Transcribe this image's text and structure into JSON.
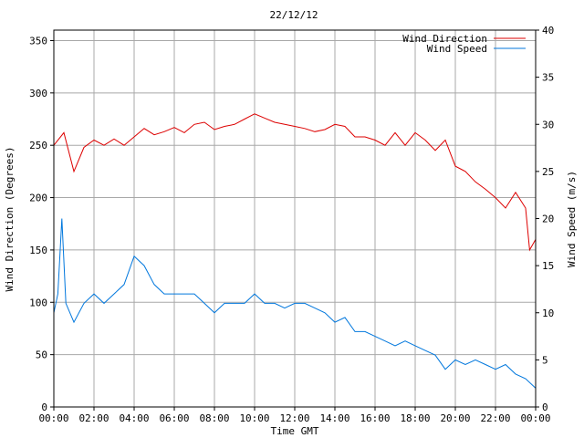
{
  "chart_data": {
    "type": "line",
    "title": "22/12/12",
    "xlabel": "Time GMT",
    "ylabel_left": "Wind Direction (Degrees)",
    "ylabel_right": "Wind Speed (m/s)",
    "x_range": [
      "00:00",
      "24:00"
    ],
    "x_tick_labels": [
      "00:00",
      "02:00",
      "04:00",
      "06:00",
      "08:00",
      "10:00",
      "12:00",
      "14:00",
      "16:00",
      "18:00",
      "20:00",
      "22:00",
      "00:00"
    ],
    "y_left_range": [
      0,
      360
    ],
    "y_left_ticks": [
      0,
      50,
      100,
      150,
      200,
      250,
      300,
      350
    ],
    "y_right_range": [
      0,
      40
    ],
    "y_right_ticks": [
      0,
      5,
      10,
      15,
      20,
      25,
      30,
      35,
      40
    ],
    "grid": true,
    "legend_position": "top-right",
    "series": [
      {
        "name": "Wind Direction",
        "axis": "left",
        "color": "#dd0000",
        "x_hours": [
          0,
          0.5,
          1,
          1.5,
          2,
          2.5,
          3,
          3.5,
          4,
          4.5,
          5,
          5.5,
          6,
          6.5,
          7,
          7.5,
          8,
          8.5,
          9,
          9.5,
          10,
          10.5,
          11,
          11.5,
          12,
          12.5,
          13,
          13.5,
          14,
          14.5,
          15,
          15.5,
          16,
          16.5,
          17,
          17.5,
          18,
          18.5,
          19,
          19.5,
          20,
          20.5,
          21,
          21.5,
          22,
          22.5,
          23,
          23.5,
          23.7,
          24
        ],
        "values": [
          250,
          262,
          225,
          248,
          255,
          250,
          256,
          250,
          258,
          266,
          260,
          263,
          267,
          262,
          270,
          272,
          265,
          268,
          270,
          275,
          280,
          276,
          272,
          270,
          268,
          266,
          263,
          265,
          270,
          268,
          258,
          258,
          255,
          250,
          262,
          250,
          262,
          255,
          245,
          255,
          230,
          225,
          215,
          208,
          200,
          190,
          205,
          190,
          150,
          160
        ]
      },
      {
        "name": "Wind Speed",
        "axis": "right",
        "color": "#0077dd",
        "x_hours": [
          0,
          0.2,
          0.4,
          0.6,
          1,
          1.5,
          2,
          2.5,
          3,
          3.5,
          4,
          4.5,
          5,
          5.5,
          6,
          6.5,
          7,
          7.5,
          8,
          8.5,
          9,
          9.5,
          10,
          10.5,
          11,
          11.5,
          12,
          12.5,
          13,
          13.5,
          14,
          14.5,
          15,
          15.5,
          16,
          16.5,
          17,
          17.5,
          18,
          18.5,
          19,
          19.5,
          20,
          20.5,
          21,
          21.5,
          22,
          22.5,
          23,
          23.5,
          24
        ],
        "values": [
          10,
          12,
          20,
          11,
          9,
          11,
          12,
          11,
          12,
          13,
          16,
          15,
          13,
          12,
          12,
          12,
          12,
          11,
          10,
          11,
          11,
          11,
          12,
          11,
          11,
          10.5,
          11,
          11,
          10.5,
          10,
          9,
          9.5,
          8,
          8,
          7.5,
          7,
          6.5,
          7,
          6.5,
          6,
          5.5,
          4,
          5,
          4.5,
          5,
          4.5,
          4,
          4.5,
          3.5,
          3,
          2
        ]
      }
    ]
  }
}
